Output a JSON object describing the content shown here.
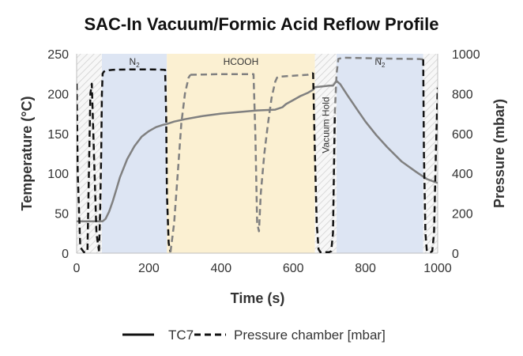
{
  "chart_data": {
    "type": "line",
    "title": "SAC-In Vacuum/Formic Acid Reflow Profile",
    "xlabel": "Time (s)",
    "ylabel_left": "Temperature (°C)",
    "ylabel_right": "Pressure (mbar)",
    "xlim": [
      0,
      1000
    ],
    "ylim_left": [
      0,
      250
    ],
    "ylim_right": [
      0,
      1000
    ],
    "x_ticks": [
      0,
      200,
      400,
      600,
      800,
      1000
    ],
    "y_left_ticks": [
      0,
      50,
      100,
      150,
      200,
      250
    ],
    "y_right_ticks": [
      0,
      200,
      400,
      600,
      800,
      1000
    ],
    "grid": false,
    "legend_position": "bottom",
    "regions": [
      {
        "label": "",
        "x0": 0,
        "x1": 70,
        "fill": "hatch-gray",
        "vertical": false
      },
      {
        "label": "N2",
        "x0": 70,
        "x1": 250,
        "fill": "#dde5f3",
        "vertical": false
      },
      {
        "label": "HCOOH",
        "x0": 250,
        "x1": 660,
        "fill": "#fbf0d2",
        "vertical": false
      },
      {
        "label": "Vacuum Hold",
        "x0": 660,
        "x1": 720,
        "fill": "hatch-gray",
        "vertical": true
      },
      {
        "label": "N2",
        "x0": 720,
        "x1": 960,
        "fill": "#dde5f3",
        "vertical": false
      },
      {
        "label": "",
        "x0": 960,
        "x1": 1000,
        "fill": "hatch-gray",
        "vertical": false
      }
    ],
    "series": [
      {
        "name": "TC7",
        "axis": "left",
        "color": "#808080",
        "style": "solid",
        "x": [
          0,
          55,
          65,
          72,
          80,
          90,
          100,
          110,
          120,
          140,
          160,
          180,
          200,
          220,
          240,
          250,
          270,
          300,
          350,
          400,
          450,
          500,
          550,
          570,
          580,
          600,
          620,
          640,
          655,
          660,
          680,
          700,
          710,
          715,
          720,
          730,
          750,
          780,
          800,
          830,
          860,
          900,
          940,
          970,
          1000
        ],
        "y": [
          40,
          40,
          40,
          40,
          43,
          52,
          65,
          80,
          95,
          118,
          134,
          146,
          153,
          158,
          161,
          162,
          165,
          168,
          172,
          175,
          177,
          179,
          180,
          183,
          187,
          192,
          197,
          201,
          205,
          208,
          209,
          210,
          210,
          213,
          216,
          212,
          198,
          178,
          165,
          148,
          133,
          115,
          102,
          93,
          88
        ]
      },
      {
        "name": "Pressure chamber [mbar]",
        "axis": "right",
        "color": "#111111",
        "style": "dashed",
        "segments": [
          {
            "color": "#111111",
            "x": [
              0,
              3,
              10,
              20,
              25,
              30,
              38,
              42,
              48,
              55,
              62
            ],
            "y": [
              850,
              400,
              30,
              5,
              5,
              10,
              800,
              850,
              500,
              100,
              10
            ]
          },
          {
            "color": "#111111",
            "x": [
              62,
              65,
              68,
              70,
              72,
              75,
              80,
              90,
              100,
              150,
              200,
              245,
              248,
              250,
              255,
              260
            ],
            "y": [
              10,
              200,
              500,
              800,
              900,
              910,
              915,
              918,
              920,
              922,
              922,
              920,
              700,
              300,
              50,
              5
            ]
          },
          {
            "color": "#808080",
            "x": [
              260,
              270,
              280,
              290,
              300,
              310,
              315
            ],
            "y": [
              5,
              150,
              400,
              650,
              800,
              880,
              895
            ]
          },
          {
            "color": "#808080",
            "x": [
              315,
              350,
              400,
              450,
              490,
              495,
              500,
              505,
              510,
              520,
              530,
              540,
              550,
              555,
              560,
              600,
              640,
              655
            ],
            "y": [
              895,
              896,
              898,
              898,
              898,
              600,
              150,
              110,
              300,
              500,
              650,
              780,
              860,
              880,
              885,
              890,
              895,
              905
            ]
          },
          {
            "color": "#111111",
            "x": [
              655,
              660,
              665,
              670,
              675,
              680,
              690,
              700,
              705,
              710,
              715
            ],
            "y": [
              905,
              500,
              150,
              20,
              5,
              5,
              5,
              5,
              10,
              100,
              700
            ]
          },
          {
            "color": "#808080",
            "x": [
              715,
              720,
              725,
              740,
              800,
              850,
              900,
              950,
              960
            ],
            "y": [
              700,
              900,
              975,
              980,
              978,
              976,
              975,
              974,
              972
            ]
          },
          {
            "color": "#111111",
            "x": [
              960,
              962,
              966,
              970,
              975,
              980,
              985,
              990,
              995,
              1000
            ],
            "y": [
              972,
              500,
              100,
              10,
              5,
              5,
              10,
              100,
              500,
              830
            ]
          }
        ]
      }
    ]
  }
}
